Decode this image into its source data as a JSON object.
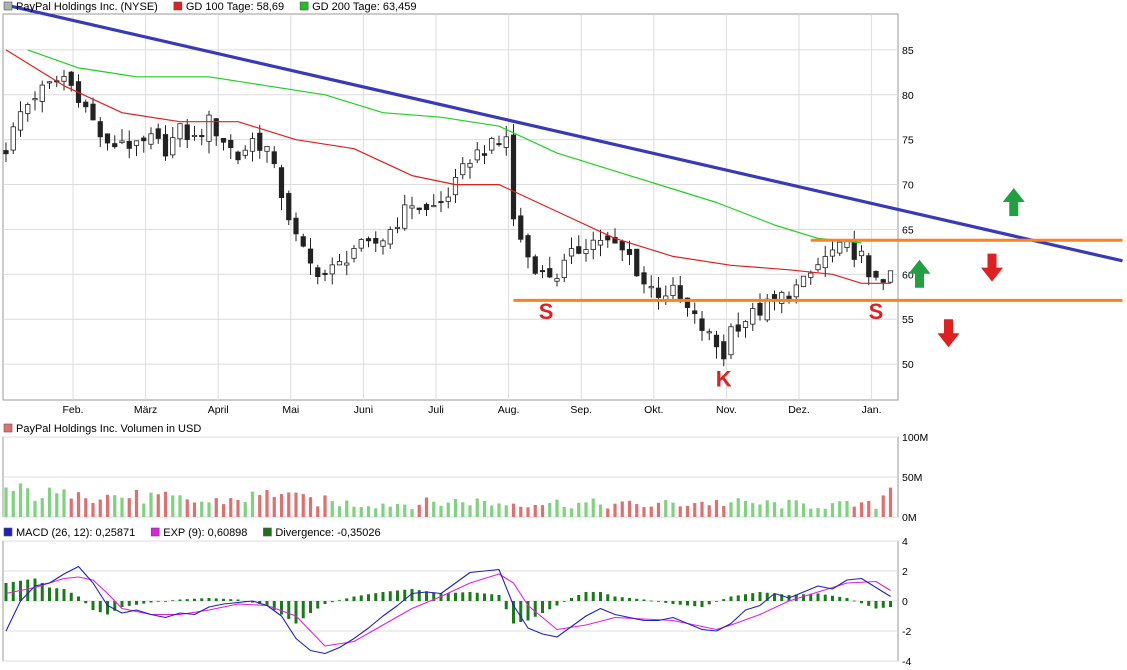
{
  "chart_data": [
    {
      "type": "candlestick",
      "legend": [
        {
          "label": "PayPal Holdings Inc. (NYSE)",
          "color": "#b0b0b0"
        },
        {
          "label": "GD 100 Tage: 58,69",
          "color": "#e02020"
        },
        {
          "label": "GD 200 Tage: 63,459",
          "color": "#20c020"
        }
      ],
      "x_labels": [
        "Feb.",
        "März",
        "April",
        "Mai",
        "Juni",
        "Juli",
        "Aug.",
        "Sep.",
        "Okt.",
        "Nov.",
        "Dez.",
        "Jan."
      ],
      "y_ticks": [
        50,
        55,
        60,
        65,
        70,
        75,
        80,
        85
      ],
      "ylim": [
        46,
        89
      ],
      "close_path": [
        [
          0,
          74
        ],
        [
          2,
          78
        ],
        [
          4,
          80
        ],
        [
          6,
          81
        ],
        [
          8,
          82
        ],
        [
          10,
          80
        ],
        [
          12,
          77
        ],
        [
          14,
          74
        ],
        [
          16,
          75
        ],
        [
          18,
          74
        ],
        [
          20,
          75
        ],
        [
          22,
          74
        ],
        [
          24,
          76
        ],
        [
          26,
          75
        ],
        [
          28,
          77
        ],
        [
          30,
          75
        ],
        [
          32,
          73
        ],
        [
          34,
          75
        ],
        [
          36,
          74
        ],
        [
          38,
          69
        ],
        [
          40,
          64
        ],
        [
          42,
          61
        ],
        [
          44,
          60
        ],
        [
          46,
          61
        ],
        [
          48,
          63
        ],
        [
          50,
          63
        ],
        [
          52,
          64
        ],
        [
          54,
          66
        ],
        [
          56,
          68
        ],
        [
          58,
          67
        ],
        [
          60,
          68
        ],
        [
          62,
          70
        ],
        [
          64,
          73
        ],
        [
          66,
          74
        ],
        [
          68,
          74.5
        ],
        [
          69,
          75.5
        ],
        [
          70,
          66
        ],
        [
          72,
          62
        ],
        [
          74,
          60
        ],
        [
          76,
          60
        ],
        [
          78,
          62
        ],
        [
          80,
          63.5
        ],
        [
          82,
          64
        ],
        [
          84,
          63
        ],
        [
          86,
          62
        ],
        [
          88,
          59
        ],
        [
          90,
          58
        ],
        [
          92,
          58
        ],
        [
          94,
          56
        ],
        [
          96,
          54
        ],
        [
          98,
          52
        ],
        [
          99,
          51
        ],
        [
          100,
          54
        ],
        [
          102,
          55
        ],
        [
          104,
          56
        ],
        [
          106,
          57
        ],
        [
          108,
          58
        ],
        [
          110,
          59
        ],
        [
          112,
          61
        ],
        [
          114,
          62.5
        ],
        [
          116,
          63
        ],
        [
          118,
          62
        ],
        [
          119,
          59
        ],
        [
          120,
          60
        ],
        [
          122,
          59.5
        ]
      ],
      "ma100_path": [
        [
          0,
          85
        ],
        [
          8,
          81
        ],
        [
          16,
          78
        ],
        [
          24,
          77
        ],
        [
          32,
          77
        ],
        [
          40,
          75
        ],
        [
          48,
          74
        ],
        [
          56,
          71
        ],
        [
          62,
          70
        ],
        [
          68,
          70
        ],
        [
          76,
          67
        ],
        [
          84,
          64
        ],
        [
          92,
          62
        ],
        [
          100,
          61
        ],
        [
          108,
          60.5
        ],
        [
          114,
          60
        ],
        [
          118,
          59
        ],
        [
          122,
          59
        ]
      ],
      "ma200_path": [
        [
          3,
          85
        ],
        [
          10,
          83
        ],
        [
          18,
          82
        ],
        [
          28,
          82
        ],
        [
          36,
          81
        ],
        [
          44,
          80
        ],
        [
          52,
          78
        ],
        [
          60,
          77.5
        ],
        [
          68,
          76.5
        ],
        [
          76,
          73.5
        ],
        [
          84,
          71.5
        ],
        [
          92,
          69.5
        ],
        [
          98,
          68
        ],
        [
          106,
          65.5
        ],
        [
          112,
          64
        ],
        [
          118,
          63.5
        ]
      ],
      "resistance_line": [
        [
          0,
          90
        ],
        [
          154,
          61.5
        ]
      ],
      "neckline_upper": {
        "y": 63.8,
        "from": 111,
        "to": 154
      },
      "neckline_lower": {
        "y": 57.1,
        "from": 70,
        "to": 154
      },
      "annotations": [
        {
          "text": "S",
          "x": 74.5,
          "y": 55
        },
        {
          "text": "K",
          "x": 99,
          "y": 47.5
        },
        {
          "text": "S",
          "x": 120,
          "y": 55
        }
      ],
      "signal_arrows": [
        {
          "direction": "up",
          "color": "#20a040",
          "x": 139,
          "y": 66.5
        },
        {
          "direction": "down",
          "color": "#e02020",
          "x": 136,
          "y": 62.3
        },
        {
          "direction": "up",
          "color": "#20a040",
          "x": 126,
          "y": 58.5
        },
        {
          "direction": "down",
          "color": "#e02020",
          "x": 130,
          "y": 55
        }
      ]
    },
    {
      "type": "bar",
      "legend": [
        {
          "label": "PayPal Holdings Inc. Volumen in USD",
          "color": "#e07070"
        }
      ],
      "y_ticks": [
        "100M",
        "50M",
        "0M"
      ],
      "ylim": [
        0,
        100
      ],
      "volume_profile": [
        [
          0,
          36
        ],
        [
          8,
          28
        ],
        [
          10,
          48
        ],
        [
          12,
          30
        ],
        [
          20,
          26
        ],
        [
          28,
          20
        ],
        [
          36,
          30
        ],
        [
          38,
          38
        ],
        [
          40,
          24
        ],
        [
          48,
          18
        ],
        [
          56,
          18
        ],
        [
          64,
          22
        ],
        [
          68,
          18
        ],
        [
          72,
          20
        ],
        [
          80,
          18
        ],
        [
          88,
          16
        ],
        [
          96,
          20
        ],
        [
          104,
          18
        ],
        [
          112,
          16
        ],
        [
          120,
          16
        ],
        [
          122,
          42
        ]
      ]
    },
    {
      "type": "line",
      "legend": [
        {
          "label": "MACD (26, 12): 0,25871",
          "color": "#2020c0"
        },
        {
          "label": "EXP (9): 0,60898",
          "color": "#e020e0"
        },
        {
          "label": "Divergence: -0,35026",
          "color": "#207020"
        }
      ],
      "y_ticks": [
        4,
        2,
        0,
        -2,
        -4
      ],
      "ylim": [
        -4,
        4
      ],
      "macd_path": [
        [
          0,
          -2
        ],
        [
          2,
          0
        ],
        [
          4,
          1
        ],
        [
          6,
          1.2
        ],
        [
          8,
          1.8
        ],
        [
          10,
          2.3
        ],
        [
          12,
          1.2
        ],
        [
          14,
          -0.3
        ],
        [
          16,
          -0.8
        ],
        [
          18,
          -0.6
        ],
        [
          20,
          -0.9
        ],
        [
          22,
          -1.1
        ],
        [
          24,
          -0.8
        ],
        [
          26,
          -0.9
        ],
        [
          28,
          -0.4
        ],
        [
          30,
          -0.2
        ],
        [
          34,
          0
        ],
        [
          36,
          -0.3
        ],
        [
          38,
          -1
        ],
        [
          40,
          -2.5
        ],
        [
          42,
          -3.3
        ],
        [
          44,
          -3.5
        ],
        [
          46,
          -3.1
        ],
        [
          48,
          -2.5
        ],
        [
          50,
          -1.8
        ],
        [
          52,
          -1
        ],
        [
          54,
          -0.3
        ],
        [
          56,
          0.5
        ],
        [
          58,
          0.6
        ],
        [
          60,
          0.5
        ],
        [
          62,
          1.2
        ],
        [
          64,
          1.9
        ],
        [
          66,
          2
        ],
        [
          68,
          2.1
        ],
        [
          70,
          -0.3
        ],
        [
          72,
          -1.8
        ],
        [
          74,
          -2.2
        ],
        [
          76,
          -2.4
        ],
        [
          78,
          -1.7
        ],
        [
          80,
          -1
        ],
        [
          82,
          -0.5
        ],
        [
          84,
          -0.9
        ],
        [
          86,
          -1.1
        ],
        [
          88,
          -1.3
        ],
        [
          90,
          -1.3
        ],
        [
          92,
          -1.1
        ],
        [
          94,
          -1.5
        ],
        [
          96,
          -1.9
        ],
        [
          98,
          -2
        ],
        [
          100,
          -1.5
        ],
        [
          102,
          -0.6
        ],
        [
          104,
          -0.3
        ],
        [
          106,
          0.5
        ],
        [
          108,
          0.2
        ],
        [
          110,
          0.6
        ],
        [
          112,
          1
        ],
        [
          114,
          0.8
        ],
        [
          116,
          1.4
        ],
        [
          118,
          1.5
        ],
        [
          120,
          0.9
        ],
        [
          122,
          0.3
        ]
      ],
      "signal_path": [
        [
          0,
          0.5
        ],
        [
          4,
          0.9
        ],
        [
          8,
          1.5
        ],
        [
          10,
          1.6
        ],
        [
          12,
          1.4
        ],
        [
          14,
          0.5
        ],
        [
          16,
          -0.5
        ],
        [
          20,
          -0.9
        ],
        [
          24,
          -0.9
        ],
        [
          28,
          -0.6
        ],
        [
          32,
          -0.2
        ],
        [
          36,
          -0.3
        ],
        [
          40,
          -1
        ],
        [
          44,
          -3
        ],
        [
          48,
          -2.7
        ],
        [
          52,
          -1.6
        ],
        [
          56,
          -0.5
        ],
        [
          60,
          0.3
        ],
        [
          64,
          1.2
        ],
        [
          68,
          1.8
        ],
        [
          70,
          1.2
        ],
        [
          72,
          -0.3
        ],
        [
          76,
          -1.9
        ],
        [
          80,
          -1.6
        ],
        [
          84,
          -1.1
        ],
        [
          88,
          -1.2
        ],
        [
          92,
          -1.3
        ],
        [
          96,
          -1.7
        ],
        [
          98,
          -1.9
        ],
        [
          100,
          -1.6
        ],
        [
          104,
          -0.9
        ],
        [
          108,
          0
        ],
        [
          112,
          0.6
        ],
        [
          116,
          1.2
        ],
        [
          120,
          1.3
        ],
        [
          122,
          0.7
        ]
      ],
      "divergence_profile": [
        [
          0,
          1.2
        ],
        [
          4,
          1.5
        ],
        [
          6,
          0.9
        ],
        [
          8,
          0.8
        ],
        [
          10,
          0.3
        ],
        [
          12,
          -0.6
        ],
        [
          14,
          -0.9
        ],
        [
          16,
          -0.4
        ],
        [
          20,
          -0.1
        ],
        [
          24,
          0.1
        ],
        [
          28,
          0.2
        ],
        [
          32,
          0.1
        ],
        [
          36,
          -0.3
        ],
        [
          40,
          -1.5
        ],
        [
          42,
          -0.8
        ],
        [
          44,
          -0.2
        ],
        [
          48,
          0.3
        ],
        [
          52,
          0.6
        ],
        [
          56,
          0.8
        ],
        [
          60,
          0.5
        ],
        [
          64,
          0.6
        ],
        [
          68,
          0.4
        ],
        [
          70,
          -1.5
        ],
        [
          72,
          -1.3
        ],
        [
          74,
          -0.8
        ],
        [
          78,
          0.2
        ],
        [
          80,
          0.6
        ],
        [
          82,
          0.6
        ],
        [
          84,
          0.3
        ],
        [
          88,
          0.1
        ],
        [
          92,
          -0.2
        ],
        [
          96,
          -0.4
        ],
        [
          100,
          0.3
        ],
        [
          104,
          0.6
        ],
        [
          108,
          0.4
        ],
        [
          112,
          0.5
        ],
        [
          116,
          0.2
        ],
        [
          120,
          -0.5
        ],
        [
          122,
          -0.4
        ]
      ]
    }
  ]
}
